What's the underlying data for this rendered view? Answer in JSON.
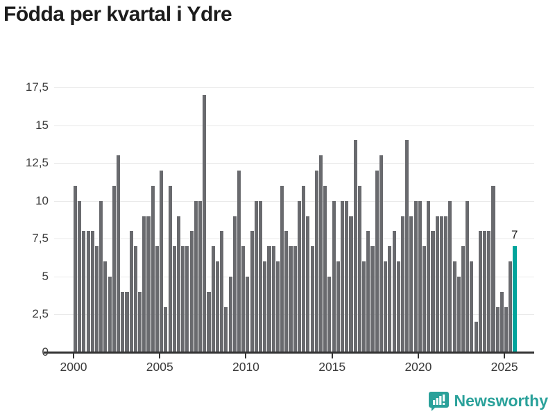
{
  "title": "Födda per kvartal i Ydre",
  "chart_data": {
    "type": "bar",
    "title": "Födda per kvartal i Ydre",
    "x_unit": "quarter",
    "start": "2000 Q1",
    "end": "2025 Q3",
    "by_year": {
      "2000": [
        11,
        10,
        8,
        8
      ],
      "2001": [
        8,
        7,
        10,
        6
      ],
      "2002": [
        5,
        11,
        13,
        4
      ],
      "2003": [
        4,
        8,
        7,
        4
      ],
      "2004": [
        9,
        9,
        11,
        7
      ],
      "2005": [
        12,
        3,
        11,
        7
      ],
      "2006": [
        9,
        7,
        7,
        8
      ],
      "2007": [
        10,
        10,
        17,
        4
      ],
      "2008": [
        7,
        6,
        8,
        3
      ],
      "2009": [
        5,
        9,
        12,
        7
      ],
      "2010": [
        5,
        8,
        10,
        10
      ],
      "2011": [
        6,
        7,
        7,
        6
      ],
      "2012": [
        11,
        8,
        7,
        7
      ],
      "2013": [
        10,
        11,
        9,
        7
      ],
      "2014": [
        12,
        13,
        11,
        5
      ],
      "2015": [
        10,
        6,
        10,
        10
      ],
      "2016": [
        9,
        14,
        11,
        6
      ],
      "2017": [
        8,
        7,
        12,
        13
      ],
      "2018": [
        6,
        7,
        8,
        6
      ],
      "2019": [
        9,
        14,
        9,
        10
      ],
      "2020": [
        10,
        7,
        10,
        8
      ],
      "2021": [
        9,
        9,
        9,
        10
      ],
      "2022": [
        6,
        5,
        7,
        10
      ],
      "2023": [
        6,
        2,
        8,
        8
      ],
      "2024": [
        8,
        11,
        3,
        4
      ],
      "2025": [
        3,
        6,
        7
      ]
    },
    "highlight_last_bar": true,
    "ylim": [
      0,
      17.5
    ],
    "ytick_values": [
      0,
      2.5,
      5,
      7.5,
      10,
      12.5,
      15,
      17.5
    ],
    "ytick_labels": [
      "0",
      "2,5",
      "5",
      "7,5",
      "10",
      "12,5",
      "15",
      "17,5"
    ],
    "xtick_labels": [
      "2000",
      "2005",
      "2010",
      "2015",
      "2020",
      "2025"
    ],
    "grid": true,
    "legend": "none",
    "bar_color": "#696a6e",
    "highlight_color": "#00a49b"
  },
  "annotation": {
    "label": "7"
  },
  "footer": {
    "brand": "Newsworthy",
    "logo_color": "#2aa19a"
  }
}
